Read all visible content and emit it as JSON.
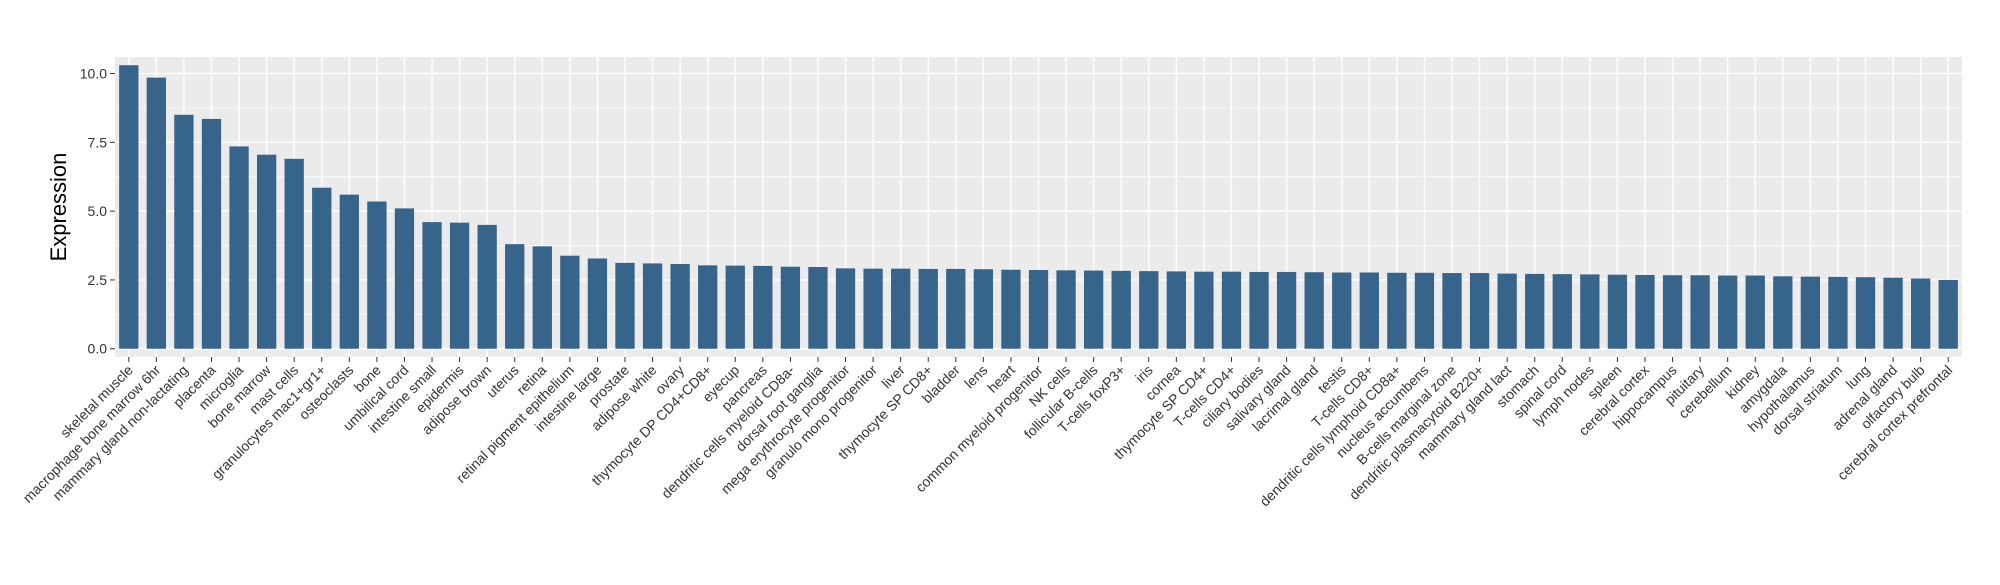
{
  "chart_data": {
    "type": "bar",
    "title": "",
    "xlabel": "",
    "ylabel": "Expression",
    "ylim": [
      -0.3,
      10.6
    ],
    "yticks": [
      0.0,
      2.5,
      5.0,
      7.5,
      10.0
    ],
    "ytick_labels": [
      "0.0",
      "2.5",
      "5.0",
      "7.5",
      "10.0"
    ],
    "grid": true,
    "bar_color": "#36648b",
    "panel_color": "#ebebeb",
    "grid_color": "#ffffff",
    "categories": [
      "skeletal muscle",
      "macrophage bone marrow 6hr",
      "mammary gland non-lactating",
      "placenta",
      "microglia",
      "bone marrow",
      "mast cells",
      "granulocytes mac1+gr1+",
      "osteoclasts",
      "bone",
      "umbilical cord",
      "intestine small",
      "epidermis",
      "adipose brown",
      "uterus",
      "retina",
      "retinal pigment epithelium",
      "intestine large",
      "prostate",
      "adipose white",
      "ovary",
      "thymocyte DP CD4+CD8+",
      "eyecup",
      "pancreas",
      "dendritic cells myeloid CD8a-",
      "dorsal root ganglia",
      "mega erythrocyte progenitor",
      "granulo mono progenitor",
      "liver",
      "thymocyte SP CD8+",
      "bladder",
      "lens",
      "heart",
      "common myeloid progenitor",
      "NK cells",
      "follicular B-cells",
      "T-cells foxP3+",
      "iris",
      "cornea",
      "thymocyte SP CD4+",
      "T-cells CD4+",
      "ciliary bodies",
      "salivary gland",
      "lacrimal gland",
      "testis",
      "T-cells CD8+",
      "dendritic cells lymphoid CD8a+",
      "nucleus accumbens",
      "B-cells marginal zone",
      "dendritic plasmacytoid B220+",
      "mammary gland  lact",
      "stomach",
      "spinal cord",
      "lymph nodes",
      "spleen",
      "cerebral cortex",
      "hippocampus",
      "pituitary",
      "cerebellum",
      "kidney",
      "amygdala",
      "hypothalamus",
      "dorsal striatum",
      "lung",
      "adrenal gland",
      "olfactory bulb",
      "cerebral cortex prefrontal"
    ],
    "values": [
      10.3,
      9.85,
      8.5,
      8.35,
      7.35,
      7.05,
      6.9,
      5.85,
      5.6,
      5.35,
      5.1,
      4.6,
      4.58,
      4.5,
      3.8,
      3.72,
      3.38,
      3.28,
      3.12,
      3.1,
      3.08,
      3.03,
      3.02,
      3.01,
      2.98,
      2.97,
      2.92,
      2.91,
      2.91,
      2.9,
      2.9,
      2.89,
      2.87,
      2.86,
      2.85,
      2.84,
      2.83,
      2.82,
      2.81,
      2.8,
      2.8,
      2.79,
      2.79,
      2.78,
      2.77,
      2.77,
      2.76,
      2.76,
      2.75,
      2.75,
      2.73,
      2.72,
      2.71,
      2.7,
      2.69,
      2.68,
      2.67,
      2.67,
      2.66,
      2.66,
      2.63,
      2.62,
      2.61,
      2.6,
      2.58,
      2.55,
      2.5
    ]
  }
}
